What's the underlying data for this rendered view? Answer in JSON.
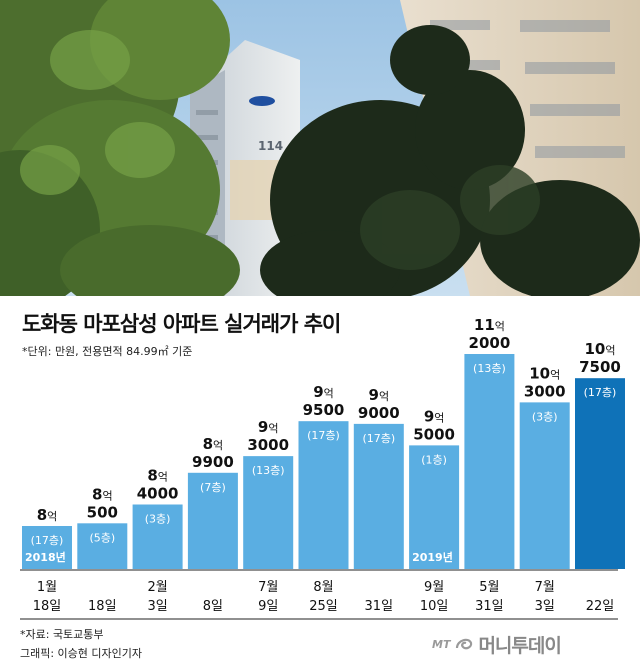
{
  "header": {
    "title": "도화동 마포삼성 아파트 실거래가 추이",
    "unit_note": "*단위: 만원, 전용면적 84.99㎡ 기준",
    "building_sign": "114"
  },
  "chart_data": {
    "type": "bar",
    "title": "도화동 마포삼성 아파트 실거래가 추이",
    "unit": "만원",
    "categories": [
      {
        "month": "1월",
        "day": "18일"
      },
      {
        "month": "",
        "day": "18일"
      },
      {
        "month": "2월",
        "day": "3일"
      },
      {
        "month": "",
        "day": "8일"
      },
      {
        "month": "7월",
        "day": "9일"
      },
      {
        "month": "8월",
        "day": "25일"
      },
      {
        "month": "",
        "day": "31일"
      },
      {
        "month": "9월",
        "day": "10일"
      },
      {
        "month": "5월",
        "day": "31일"
      },
      {
        "month": "7월",
        "day": "3일"
      },
      {
        "month": "",
        "day": "22일"
      }
    ],
    "values": [
      80000,
      80500,
      84000,
      89900,
      93000,
      99500,
      99000,
      95000,
      112000,
      103000,
      107500
    ],
    "price_labels": [
      {
        "eok": "8",
        "man": ""
      },
      {
        "eok": "8",
        "man": "500"
      },
      {
        "eok": "8",
        "man": "4000"
      },
      {
        "eok": "8",
        "man": "9900"
      },
      {
        "eok": "9",
        "man": "3000"
      },
      {
        "eok": "9",
        "man": "9500"
      },
      {
        "eok": "9",
        "man": "9000"
      },
      {
        "eok": "9",
        "man": "5000"
      },
      {
        "eok": "11",
        "man": "2000"
      },
      {
        "eok": "10",
        "man": "3000"
      },
      {
        "eok": "10",
        "man": "7500"
      }
    ],
    "eok_suffix": "억",
    "floors": [
      "(17층)",
      "(5층)",
      "(3층)",
      "(7층)",
      "(13층)",
      "(17층)",
      "(17층)",
      "(1층)",
      "(13층)",
      "(3층)",
      "(17층)"
    ],
    "year_markers": [
      {
        "index": 0,
        "label": "2018년"
      },
      {
        "index": 7,
        "label": "2019년"
      }
    ],
    "highlight_index": 10,
    "colors": {
      "bar": "#5aaee2",
      "highlight": "#0f72b8",
      "divider": "#222222",
      "text": "#111111"
    }
  },
  "footer": {
    "source": "*자료: 국토교통부",
    "credit": "그래픽: 이승현 디자인기자",
    "brand_prefix": "MT",
    "brand_name": "머니투데이"
  }
}
